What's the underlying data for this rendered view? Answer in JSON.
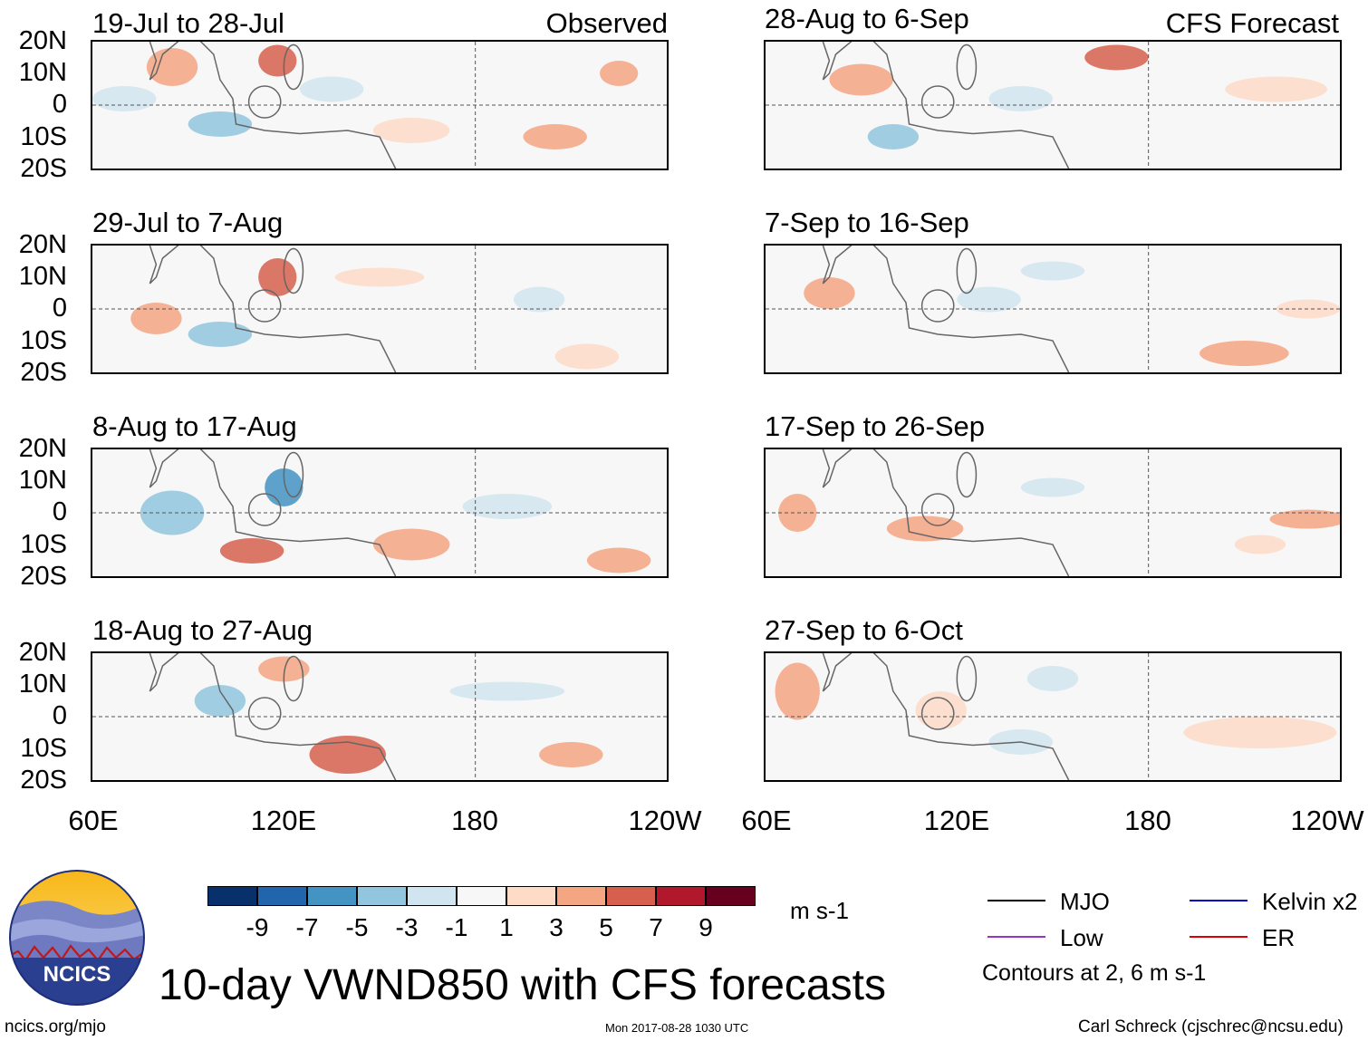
{
  "chart_data": {
    "type": "heatmap",
    "title": "10-day VWND850 with CFS forecasts",
    "variable": "VWND850",
    "units": "m s-1",
    "columns": [
      {
        "label": "Observed",
        "panels": [
          "19-Jul to 28-Jul",
          "29-Jul to 7-Aug",
          "8-Aug to 17-Aug",
          "18-Aug to 27-Aug"
        ]
      },
      {
        "label": "CFS Forecast",
        "panels": [
          "28-Aug to 6-Sep",
          "7-Sep to 16-Sep",
          "17-Sep to 26-Sep",
          "27-Sep to 6-Oct"
        ]
      }
    ],
    "lat_ticks": [
      "20N",
      "10N",
      "0",
      "10S",
      "20S"
    ],
    "lat_range": [
      -20,
      20
    ],
    "lon_ticks": [
      "60E",
      "120E",
      "180",
      "120W"
    ],
    "lon_range": [
      60,
      240
    ],
    "colorbar": {
      "ticks": [
        "-9",
        "-7",
        "-5",
        "-3",
        "-1",
        "1",
        "3",
        "5",
        "7",
        "9"
      ],
      "colors": [
        "#08306b",
        "#2166ac",
        "#4393c3",
        "#92c5de",
        "#d1e5f0",
        "#f7f7f7",
        "#fddbc7",
        "#f4a582",
        "#d6604d",
        "#b2182b",
        "#67001f"
      ]
    },
    "legend": [
      {
        "label": "MJO",
        "color": "#000000"
      },
      {
        "label": "Kelvin x2",
        "color": "#0000cc"
      },
      {
        "label": "Low",
        "color": "#9933cc"
      },
      {
        "label": "ER",
        "color": "#dd0000"
      }
    ],
    "contour_note": "Contours at 2, 6 m s-1"
  },
  "footer": {
    "logo_text": "NCICS",
    "url": "ncics.org/mjo",
    "timestamp": "Mon 2017-08-28 1030 UTC",
    "credit": "Carl Schreck (cjschrec@ncsu.edu)"
  }
}
